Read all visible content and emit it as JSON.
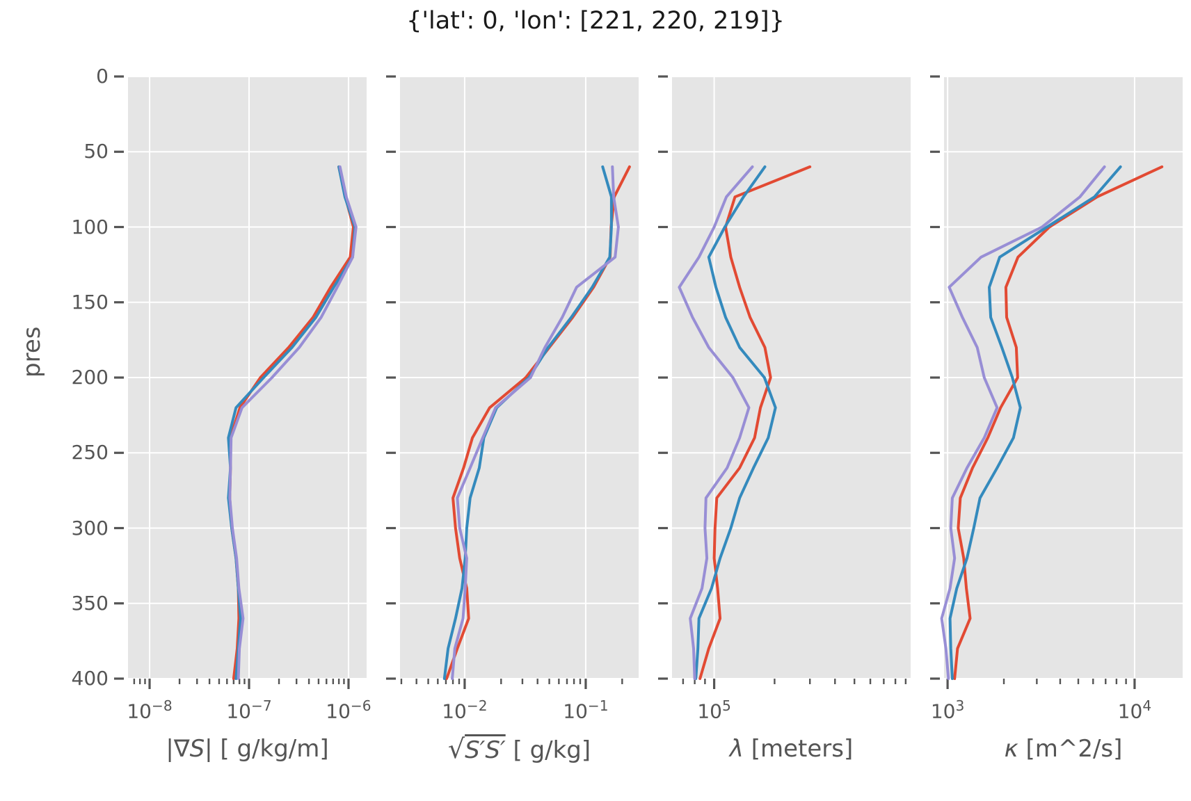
{
  "title": "{'lat': 0, 'lon': [221, 220, 219]}",
  "chart_data": {
    "type": "line",
    "title": "{'lat': 0, 'lon': [221, 220, 219]}",
    "ylabel": "pres",
    "ylim": [
      0,
      400
    ],
    "y_axis_inverted": true,
    "grid": true,
    "legend_position": "none",
    "y_ticks": [
      0,
      50,
      100,
      150,
      200,
      250,
      300,
      350,
      400
    ],
    "pressure_levels": [
      60,
      80,
      100,
      120,
      140,
      160,
      180,
      200,
      220,
      240,
      260,
      280,
      300,
      320,
      340,
      360,
      380,
      400
    ],
    "style": {
      "panel_background": "#E5E5E5",
      "grid_color": "#FFFFFF",
      "tick_color": "#555555",
      "text_color": "#555555",
      "title_color": "#1a1a1a",
      "line_width": 4
    },
    "series_meta": [
      {
        "name": "lon 221",
        "color": "#E24A33"
      },
      {
        "name": "lon 220",
        "color": "#348ABD"
      },
      {
        "name": "lon 219",
        "color": "#988ED5"
      }
    ],
    "panels": [
      {
        "xlabel_text": "|∇S| [ g/kg/m]",
        "xlabel_parts": [
          {
            "t": "|∇"
          },
          {
            "t": "S",
            "italic": true
          },
          {
            "t": "| [ g/kg/m]"
          }
        ],
        "xscale": "log",
        "xlim_log": [
          -8.217,
          -5.818
        ],
        "major_exponents": [
          -8,
          -7,
          -6
        ],
        "series": [
          [
            8e-07,
            9.3e-07,
            1.12e-06,
            1.04e-06,
            6.6e-07,
            4.4e-07,
            2.5e-07,
            1.3e-07,
            8.1e-08,
            6.5e-08,
            6.5e-08,
            6.4e-08,
            6.7e-08,
            7.4e-08,
            7.8e-08,
            7.9e-08,
            7.6e-08,
            7e-08
          ],
          [
            8e-07,
            9.2e-07,
            1.16e-06,
            1.1e-06,
            7.1e-07,
            4.7e-07,
            2.7e-07,
            1.4e-07,
            7.4e-08,
            6.2e-08,
            6.5e-08,
            6.2e-08,
            6.7e-08,
            7.4e-08,
            7.8e-08,
            8.2e-08,
            7.8e-08,
            7.4e-08
          ],
          [
            8.2e-07,
            9.5e-07,
            1.19e-06,
            1.1e-06,
            7.7e-07,
            5.3e-07,
            3.2e-07,
            1.7e-07,
            8.5e-08,
            6.6e-08,
            6.5e-08,
            6.4e-08,
            6.8e-08,
            7.5e-08,
            7.9e-08,
            8.7e-08,
            8e-08,
            7.8e-08
          ]
        ]
      },
      {
        "xlabel_text": "√S′S′ [ g/kg]",
        "xlabel_parts": [
          {
            "t": "√",
            "radical": true
          },
          {
            "t": "S′S′",
            "sqrt": true
          },
          {
            "t": " [ g/kg]"
          }
        ],
        "xscale": "log",
        "xlim_log": [
          -2.534,
          -0.563
        ],
        "major_exponents": [
          -2,
          -1
        ],
        "series": [
          [
            0.23,
            0.172,
            0.162,
            0.159,
            0.116,
            0.078,
            0.05,
            0.032,
            0.0161,
            0.0116,
            0.0098,
            0.008,
            0.0084,
            0.0091,
            0.0104,
            0.0108,
            0.0087,
            0.0071
          ],
          [
            0.138,
            0.163,
            0.163,
            0.158,
            0.113,
            0.076,
            0.049,
            0.034,
            0.0184,
            0.0144,
            0.0132,
            0.0111,
            0.0104,
            0.0101,
            0.0095,
            0.0084,
            0.0073,
            0.0068
          ],
          [
            0.166,
            0.17,
            0.186,
            0.175,
            0.084,
            0.064,
            0.046,
            0.035,
            0.018,
            0.0141,
            0.0111,
            0.0087,
            0.0091,
            0.0104,
            0.0101,
            0.0097,
            0.0083,
            0.0079
          ]
        ]
      },
      {
        "xlabel_text": "λ [meters]",
        "xlabel_parts": [
          {
            "t": "λ",
            "italic": true
          },
          {
            "t": " [meters]"
          }
        ],
        "xscale": "log",
        "xlim_log": [
          4.79,
          5.979
        ],
        "major_exponents": [
          5
        ],
        "series": [
          [
            300000,
            127000,
            114000,
            121000,
            134000,
            151000,
            179000,
            191000,
            170000,
            159000,
            134000,
            103000,
            101000,
            100000,
            104000,
            107000,
            94000,
            85000
          ],
          [
            179000,
            140000,
            113000,
            94000,
            102000,
            114000,
            134000,
            178000,
            202000,
            186000,
            157000,
            134000,
            121000,
            107000,
            97000,
            84000,
            83000,
            81000
          ],
          [
            155000,
            115000,
            100000,
            84000,
            67000,
            78000,
            94000,
            124000,
            149000,
            134000,
            116000,
            91000,
            90000,
            92000,
            87000,
            76000,
            79000,
            80000
          ]
        ]
      },
      {
        "xlabel_text": "κ [m^2/s]",
        "xlabel_parts": [
          {
            "t": "κ",
            "italic": true
          },
          {
            "t": " [m^2/s]"
          }
        ],
        "xscale": "log",
        "xlim_log": [
          2.981,
          4.257
        ],
        "major_exponents": [
          3,
          4
        ],
        "series": [
          [
            14000,
            6300,
            3500,
            2380,
            2050,
            2070,
            2330,
            2370,
            1920,
            1640,
            1360,
            1170,
            1140,
            1220,
            1260,
            1320,
            1130,
            1090
          ],
          [
            8400,
            6100,
            3400,
            1900,
            1670,
            1700,
            1950,
            2220,
            2450,
            2250,
            1840,
            1490,
            1380,
            1270,
            1120,
            1030,
            1040,
            1060
          ],
          [
            6900,
            5100,
            3200,
            1510,
            1020,
            1200,
            1440,
            1570,
            1840,
            1570,
            1270,
            1060,
            1040,
            1090,
            1030,
            930,
            980,
            1010
          ]
        ]
      }
    ]
  }
}
